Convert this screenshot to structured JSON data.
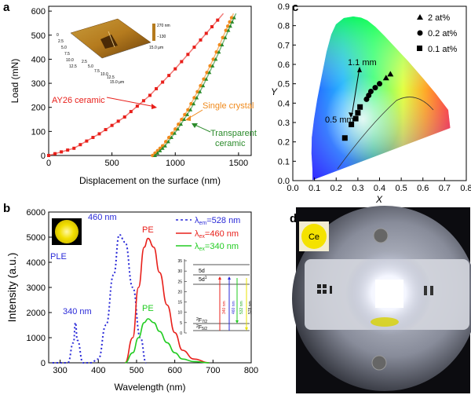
{
  "panels": {
    "a": "a",
    "b": "b",
    "c": "c",
    "d": "d"
  },
  "colors": {
    "red": "#e8201b",
    "orange": "#f08a1c",
    "green": "#2a8a2a",
    "blue": "#2a2ad8",
    "pe_green": "#22cc22"
  },
  "chart_data": [
    {
      "type": "line",
      "xlabel": "Displacement on the surface (nm)",
      "ylabel": "Load (mN)",
      "xlim": [
        0,
        1600
      ],
      "ylim": [
        0,
        620
      ],
      "xticks": [
        "0",
        "500",
        "1000",
        "1500"
      ],
      "yticks": [
        "0",
        "100",
        "200",
        "300",
        "400",
        "500",
        "600"
      ],
      "annotations": {
        "ay26": "AY26 ceramic",
        "single": "Single crystal",
        "transparent_1": "Transparent",
        "transparent_2": "ceramic"
      },
      "afm_labels": {
        "z1": "270 nm",
        "z2": "−130",
        "x1": "15.0 μm",
        "xt1": "2.5",
        "xt2": "5.0",
        "xt3": "7.5",
        "xt4": "10.0",
        "xt5": "12.5",
        "xt6": "15.0 μm",
        "yt1": "0",
        "yt2": "2.5",
        "yt3": "5.0",
        "yt4": "7.5",
        "yt5": "10.0",
        "yt6": "12.5"
      },
      "series": [
        {
          "name": "AY26 ceramic",
          "x": [
            0,
            200,
            400,
            600,
            800,
            1000,
            1200,
            1380
          ],
          "y": [
            0,
            30,
            90,
            160,
            250,
            360,
            480,
            590
          ]
        },
        {
          "name": "Single crystal",
          "x": [
            820,
            900,
            1000,
            1100,
            1200,
            1300,
            1400,
            1460
          ],
          "y": [
            0,
            40,
            110,
            190,
            290,
            400,
            520,
            590
          ]
        },
        {
          "name": "Transparent ceramic",
          "x": [
            840,
            920,
            1020,
            1120,
            1220,
            1320,
            1420,
            1480
          ],
          "y": [
            0,
            40,
            110,
            190,
            290,
            400,
            520,
            590
          ]
        }
      ]
    },
    {
      "type": "line",
      "xlabel": "Wavelength (nm)",
      "ylabel": "Intensity (a.u.)",
      "xlim": [
        270,
        800
      ],
      "ylim": [
        0,
        6000
      ],
      "xticks": [
        "300",
        "400",
        "500",
        "600",
        "700",
        "800"
      ],
      "yticks": [
        "0",
        "1000",
        "2000",
        "3000",
        "4000",
        "5000",
        "6000"
      ],
      "legend": [
        {
          "label_pre": "λ",
          "label_sub": "em",
          "label_post": "=528 nm",
          "style": "dotted",
          "color": "#2a2ad8"
        },
        {
          "label_pre": "λ",
          "label_sub": "ex",
          "label_post": "=460 nm",
          "style": "solid",
          "color": "#e8201b"
        },
        {
          "label_pre": "λ",
          "label_sub": "ex",
          "label_post": "=340 nm",
          "style": "solid",
          "color": "#22cc22"
        }
      ],
      "annotations": {
        "ple": "PLE",
        "pe_red": "PE",
        "pe_green": "PE",
        "peak460": "460 nm",
        "peak340": "340 nm"
      },
      "inset": {
        "yticks": [
          "0",
          "5",
          "10",
          "15",
          "20",
          "25",
          "30",
          "35"
        ],
        "levels": {
          "d5": "5d",
          "d5_1": "5d",
          "d5_sup": "1",
          "f72": "F",
          "f72_sup": "2",
          "f72_sub": "7/2",
          "f52": "F",
          "f52_sup": "2",
          "f52_sub": "5/2"
        },
        "arrows": [
          "340 nm",
          "460 nm",
          "532 nm",
          "578 nm"
        ]
      },
      "series": [
        {
          "name": "λem=528 nm (PLE)",
          "x": [
            280,
            320,
            335,
            340,
            345,
            360,
            380,
            400,
            420,
            440,
            455,
            470,
            490,
            510,
            525
          ],
          "y": [
            0,
            0,
            800,
            1600,
            900,
            0,
            0,
            150,
            1500,
            3500,
            5100,
            4800,
            3000,
            1000,
            0
          ]
        },
        {
          "name": "λex=460 nm (PE)",
          "x": [
            470,
            490,
            505,
            520,
            530,
            545,
            560,
            580,
            600,
            620,
            650,
            690
          ],
          "y": [
            0,
            1000,
            3000,
            4600,
            4950,
            4600,
            3600,
            2300,
            1200,
            500,
            150,
            0
          ]
        },
        {
          "name": "λex=340 nm (PE)",
          "x": [
            470,
            490,
            505,
            520,
            530,
            545,
            560,
            580,
            600,
            620,
            650,
            690
          ],
          "y": [
            0,
            400,
            1000,
            1600,
            1750,
            1600,
            1250,
            800,
            400,
            150,
            50,
            0
          ]
        }
      ]
    },
    {
      "type": "scatter",
      "xlabel": "X",
      "ylabel": "Y",
      "xlim": [
        0,
        0.8
      ],
      "ylim": [
        0,
        0.9
      ],
      "xticks": [
        "0.0",
        "0.1",
        "0.2",
        "0.3",
        "0.4",
        "0.5",
        "0.6",
        "0.7",
        "0.8"
      ],
      "yticks": [
        "0.0",
        "0.1",
        "0.2",
        "0.3",
        "0.4",
        "0.5",
        "0.6",
        "0.7",
        "0.8",
        "0.9"
      ],
      "legend": [
        "2 at%",
        "0.2 at%",
        "0.1 at%"
      ],
      "annotations": {
        "t1": "1.1 mm",
        "t2": "0.5 mm"
      },
      "series": [
        {
          "name": "2 at%",
          "marker": "triangle",
          "x": [
            0.43,
            0.45
          ],
          "y": [
            0.53,
            0.55
          ]
        },
        {
          "name": "0.2 at%",
          "marker": "circle",
          "x": [
            0.34,
            0.35,
            0.36,
            0.38,
            0.4
          ],
          "y": [
            0.42,
            0.44,
            0.46,
            0.48,
            0.5
          ]
        },
        {
          "name": "0.1 at%",
          "marker": "square",
          "x": [
            0.24,
            0.27,
            0.29,
            0.3,
            0.31
          ],
          "y": [
            0.22,
            0.29,
            0.32,
            0.35,
            0.38
          ]
        }
      ]
    }
  ],
  "photo_d": {
    "ce_label": "Ce"
  }
}
